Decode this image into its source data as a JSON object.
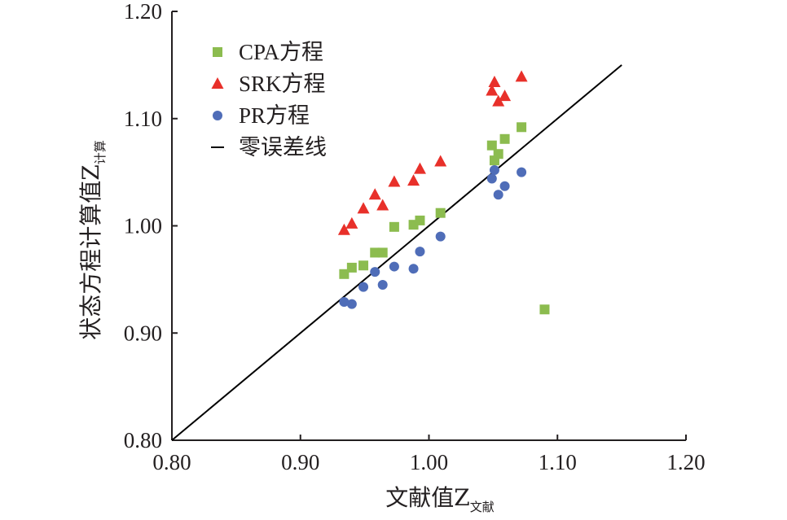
{
  "chart_data": {
    "type": "scatter",
    "xlabel": "文献值Z",
    "xlabel_subscript": "文献",
    "ylabel": "状态方程计算值Z",
    "ylabel_subscript": "计算",
    "xlim": [
      0.8,
      1.2
    ],
    "ylim": [
      0.8,
      1.2
    ],
    "xticks": [
      "0.80",
      "0.90",
      "1.00",
      "1.10",
      "1.20"
    ],
    "yticks": [
      "0.80",
      "0.90",
      "1.00",
      "1.10",
      "1.20"
    ],
    "grid": false,
    "legend_position": "top-left",
    "series": [
      {
        "name": "CPA方程",
        "marker": "square",
        "color": "#8cbc4f",
        "points": [
          [
            0.934,
            0.955
          ],
          [
            0.94,
            0.961
          ],
          [
            0.949,
            0.963
          ],
          [
            0.958,
            0.975
          ],
          [
            0.964,
            0.975
          ],
          [
            0.973,
            0.999
          ],
          [
            0.988,
            1.001
          ],
          [
            0.993,
            1.005
          ],
          [
            1.009,
            1.012
          ],
          [
            1.049,
            1.075
          ],
          [
            1.051,
            1.061
          ],
          [
            1.054,
            1.067
          ],
          [
            1.059,
            1.081
          ],
          [
            1.072,
            1.092
          ],
          [
            1.09,
            0.922
          ]
        ]
      },
      {
        "name": "SRK方程",
        "marker": "triangle",
        "color": "#e8302a",
        "points": [
          [
            0.934,
            0.996
          ],
          [
            0.94,
            1.002
          ],
          [
            0.949,
            1.016
          ],
          [
            0.958,
            1.029
          ],
          [
            0.964,
            1.019
          ],
          [
            0.973,
            1.041
          ],
          [
            0.988,
            1.042
          ],
          [
            0.993,
            1.053
          ],
          [
            1.009,
            1.06
          ],
          [
            1.049,
            1.126
          ],
          [
            1.051,
            1.134
          ],
          [
            1.054,
            1.116
          ],
          [
            1.059,
            1.121
          ],
          [
            1.072,
            1.139
          ]
        ]
      },
      {
        "name": "PR方程",
        "marker": "circle",
        "color": "#4f6db8",
        "points": [
          [
            0.934,
            0.929
          ],
          [
            0.94,
            0.927
          ],
          [
            0.949,
            0.943
          ],
          [
            0.958,
            0.957
          ],
          [
            0.964,
            0.945
          ],
          [
            0.973,
            0.962
          ],
          [
            0.988,
            0.96
          ],
          [
            0.993,
            0.976
          ],
          [
            1.009,
            0.99
          ],
          [
            1.049,
            1.044
          ],
          [
            1.051,
            1.052
          ],
          [
            1.054,
            1.029
          ],
          [
            1.059,
            1.037
          ],
          [
            1.072,
            1.05
          ]
        ]
      }
    ],
    "reference_line": {
      "name": "零误差线",
      "color": "#000000",
      "from": [
        0.8,
        0.8
      ],
      "to": [
        1.15,
        1.15
      ]
    }
  }
}
